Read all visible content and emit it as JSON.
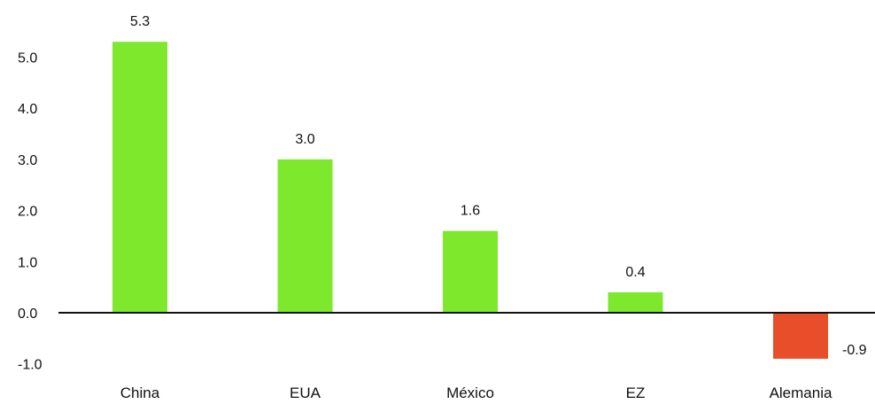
{
  "chart_data": {
    "type": "bar",
    "categories": [
      "China",
      "EUA",
      "México",
      "EZ",
      "Alemania"
    ],
    "values": [
      5.3,
      3.0,
      1.6,
      0.4,
      -0.9
    ],
    "value_labels": [
      "5.3",
      "3.0",
      "1.6",
      "0.4",
      "-0.9"
    ],
    "yticks": [
      "-1.0",
      "0.0",
      "1.0",
      "2.0",
      "3.0",
      "4.0",
      "5.0"
    ],
    "ylim": [
      -1.0,
      5.6
    ],
    "grid": false,
    "colors": {
      "positive": "#7de82c",
      "negative": "#e84e2a",
      "axis": "#111111"
    }
  }
}
